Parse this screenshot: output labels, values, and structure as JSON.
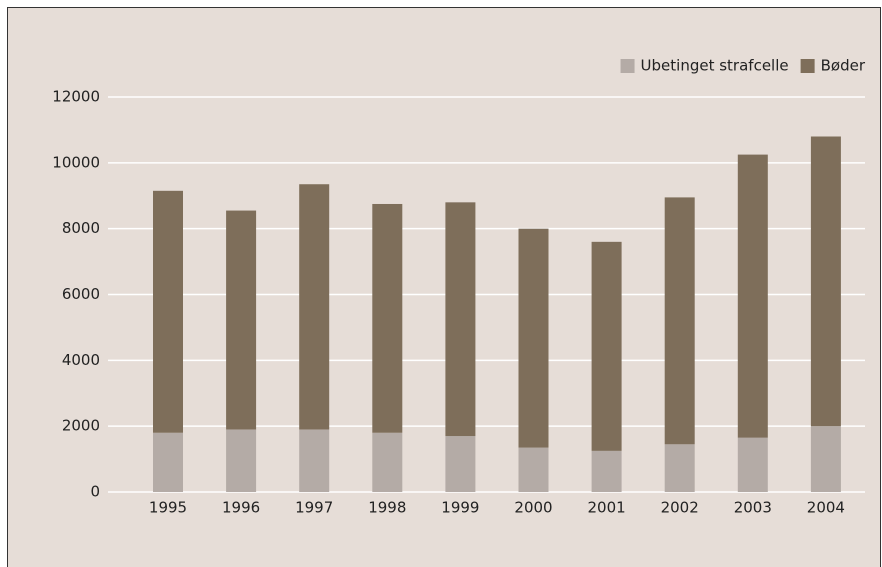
{
  "chart_data": {
    "type": "stacked_bar",
    "categories": [
      "1995",
      "1996",
      "1997",
      "1998",
      "1999",
      "2000",
      "2001",
      "2002",
      "2003",
      "2004"
    ],
    "series": [
      {
        "name": "Ubetinget strafcelle",
        "color": "#b4aba6",
        "values": [
          1800,
          1900,
          1900,
          1800,
          1700,
          1350,
          1250,
          1450,
          1650,
          2000
        ]
      },
      {
        "name": "Bøder",
        "color": "#7e6e5a",
        "values": [
          7350,
          6650,
          7450,
          6950,
          7100,
          6650,
          6350,
          7500,
          8600,
          8800
        ]
      }
    ],
    "ylim": [
      0,
      12000
    ],
    "yticks": [
      0,
      2000,
      4000,
      6000,
      8000,
      10000,
      12000
    ],
    "grid": true,
    "legend": "top-right"
  }
}
